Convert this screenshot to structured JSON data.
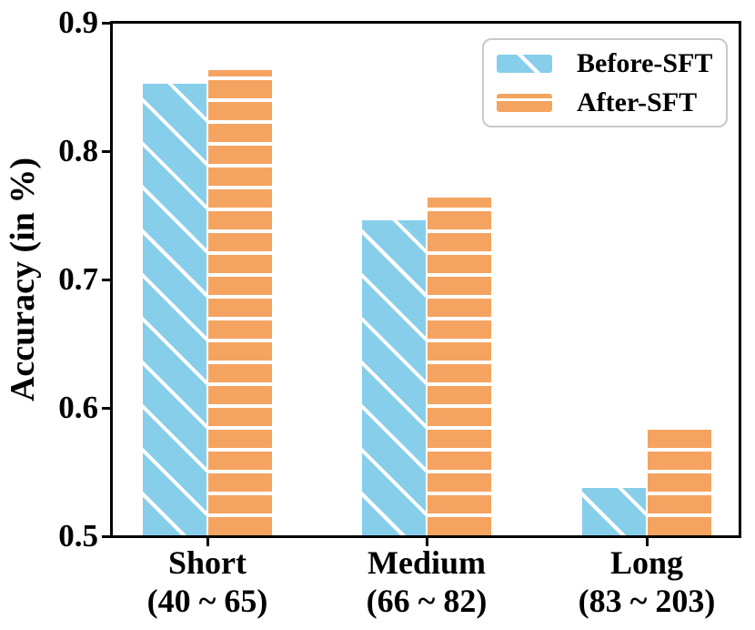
{
  "chart_data": {
    "type": "bar",
    "title": "",
    "xlabel": "",
    "ylabel": "Accuracy (in %)",
    "ylim": [
      0.5,
      0.9
    ],
    "yticks": [
      0.5,
      0.6,
      0.7,
      0.8,
      0.9
    ],
    "ytick_labels": [
      "0.5",
      "0.6",
      "0.7",
      "0.8",
      "0.9"
    ],
    "categories": [
      "Short",
      "Medium",
      "Long"
    ],
    "category_sublabels": [
      "(40 ~ 65)",
      "(66 ~ 82)",
      "(83 ~ 203)"
    ],
    "series": [
      {
        "name": "Before-SFT",
        "values": [
          0.853,
          0.746,
          0.537
        ],
        "color": "#87CEEB",
        "hatch": "diagonal"
      },
      {
        "name": "After-SFT",
        "values": [
          0.864,
          0.764,
          0.584
        ],
        "color": "#F4A460",
        "hatch": "horizontal"
      }
    ],
    "grid": false,
    "legend": {
      "position": "top-right",
      "entries": [
        "Before-SFT",
        "After-SFT"
      ]
    }
  },
  "colors": {
    "spine": "#000000",
    "hatch_line": "#ffffff",
    "legend_border": "#c9c9c9",
    "before_sft": "#87CEEB",
    "after_sft": "#F4A460"
  }
}
